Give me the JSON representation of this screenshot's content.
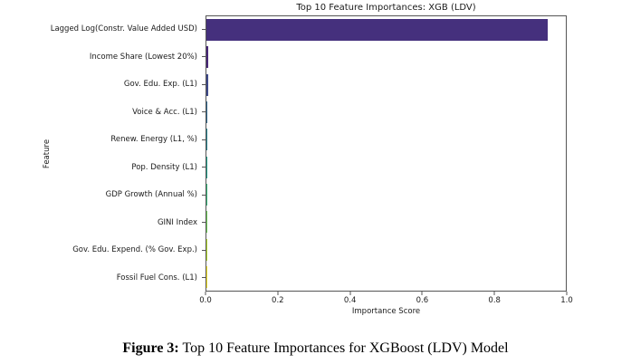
{
  "chart_data": {
    "type": "bar",
    "orientation": "horizontal",
    "title": "Top 10 Feature Importances: XGB (LDV)",
    "xlabel": "Importance Score",
    "ylabel": "Feature",
    "categories": [
      "Lagged Log(Constr. Value Added USD)",
      "Income Share (Lowest 20%)",
      "Gov. Edu. Exp. (L1)",
      "Voice & Acc. (L1)",
      "Renew. Energy (L1, %)",
      "Pop. Density (L1)",
      "GDP Growth (Annual %)",
      "GINI Index",
      "Gov. Edu. Expend. (% Gov. Exp.)",
      "Fossil Fuel Cons. (L1)"
    ],
    "values": [
      0.95,
      0.006,
      0.004,
      0.003,
      0.003,
      0.002,
      0.002,
      0.002,
      0.001,
      0.001
    ],
    "xlim": [
      0.0,
      1.0
    ],
    "xticks": [
      0.0,
      0.2,
      0.4,
      0.6,
      0.8,
      1.0
    ],
    "xtick_labels": [
      "0.0",
      "0.2",
      "0.4",
      "0.6",
      "0.8",
      "1.0"
    ],
    "bar_colors": [
      "#45307d",
      "#482878",
      "#3e4989",
      "#31688e",
      "#26828e",
      "#1f9e89",
      "#35b779",
      "#6ece58",
      "#b5de2b",
      "#fde725"
    ],
    "grid": false,
    "legend": false,
    "spine_color": "#555555",
    "background": "#ffffff"
  },
  "caption": {
    "label": "Figure 3:",
    "text": "Top 10 Feature Importances for XGBoost (LDV) Model"
  }
}
